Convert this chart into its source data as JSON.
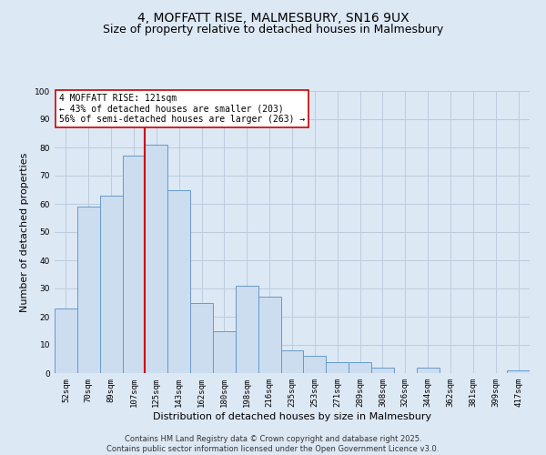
{
  "title_line1": "4, MOFFATT RISE, MALMESBURY, SN16 9UX",
  "title_line2": "Size of property relative to detached houses in Malmesbury",
  "xlabel": "Distribution of detached houses by size in Malmesbury",
  "ylabel": "Number of detached properties",
  "categories": [
    "52sqm",
    "70sqm",
    "89sqm",
    "107sqm",
    "125sqm",
    "143sqm",
    "162sqm",
    "180sqm",
    "198sqm",
    "216sqm",
    "235sqm",
    "253sqm",
    "271sqm",
    "289sqm",
    "308sqm",
    "326sqm",
    "344sqm",
    "362sqm",
    "381sqm",
    "399sqm",
    "417sqm"
  ],
  "values": [
    23,
    59,
    63,
    77,
    81,
    65,
    25,
    15,
    31,
    27,
    8,
    6,
    4,
    4,
    2,
    0,
    2,
    0,
    0,
    0,
    1
  ],
  "bar_color": "#ccddf0",
  "bar_edge_color": "#6699cc",
  "vline_x": 3.5,
  "vline_color": "#cc0000",
  "annotation_text": "4 MOFFATT RISE: 121sqm\n← 43% of detached houses are smaller (203)\n56% of semi-detached houses are larger (263) →",
  "annotation_box_facecolor": "#ffffff",
  "annotation_box_edgecolor": "#cc0000",
  "ylim": [
    0,
    100
  ],
  "yticks": [
    0,
    10,
    20,
    30,
    40,
    50,
    60,
    70,
    80,
    90,
    100
  ],
  "grid_color": "#bbccdd",
  "background_color": "#dde8f5",
  "footer_text": "Contains HM Land Registry data © Crown copyright and database right 2025.\nContains public sector information licensed under the Open Government Licence v3.0.",
  "title_fontsize": 10,
  "subtitle_fontsize": 9,
  "axis_label_fontsize": 8,
  "tick_fontsize": 6.5,
  "annotation_fontsize": 7,
  "footer_fontsize": 6
}
